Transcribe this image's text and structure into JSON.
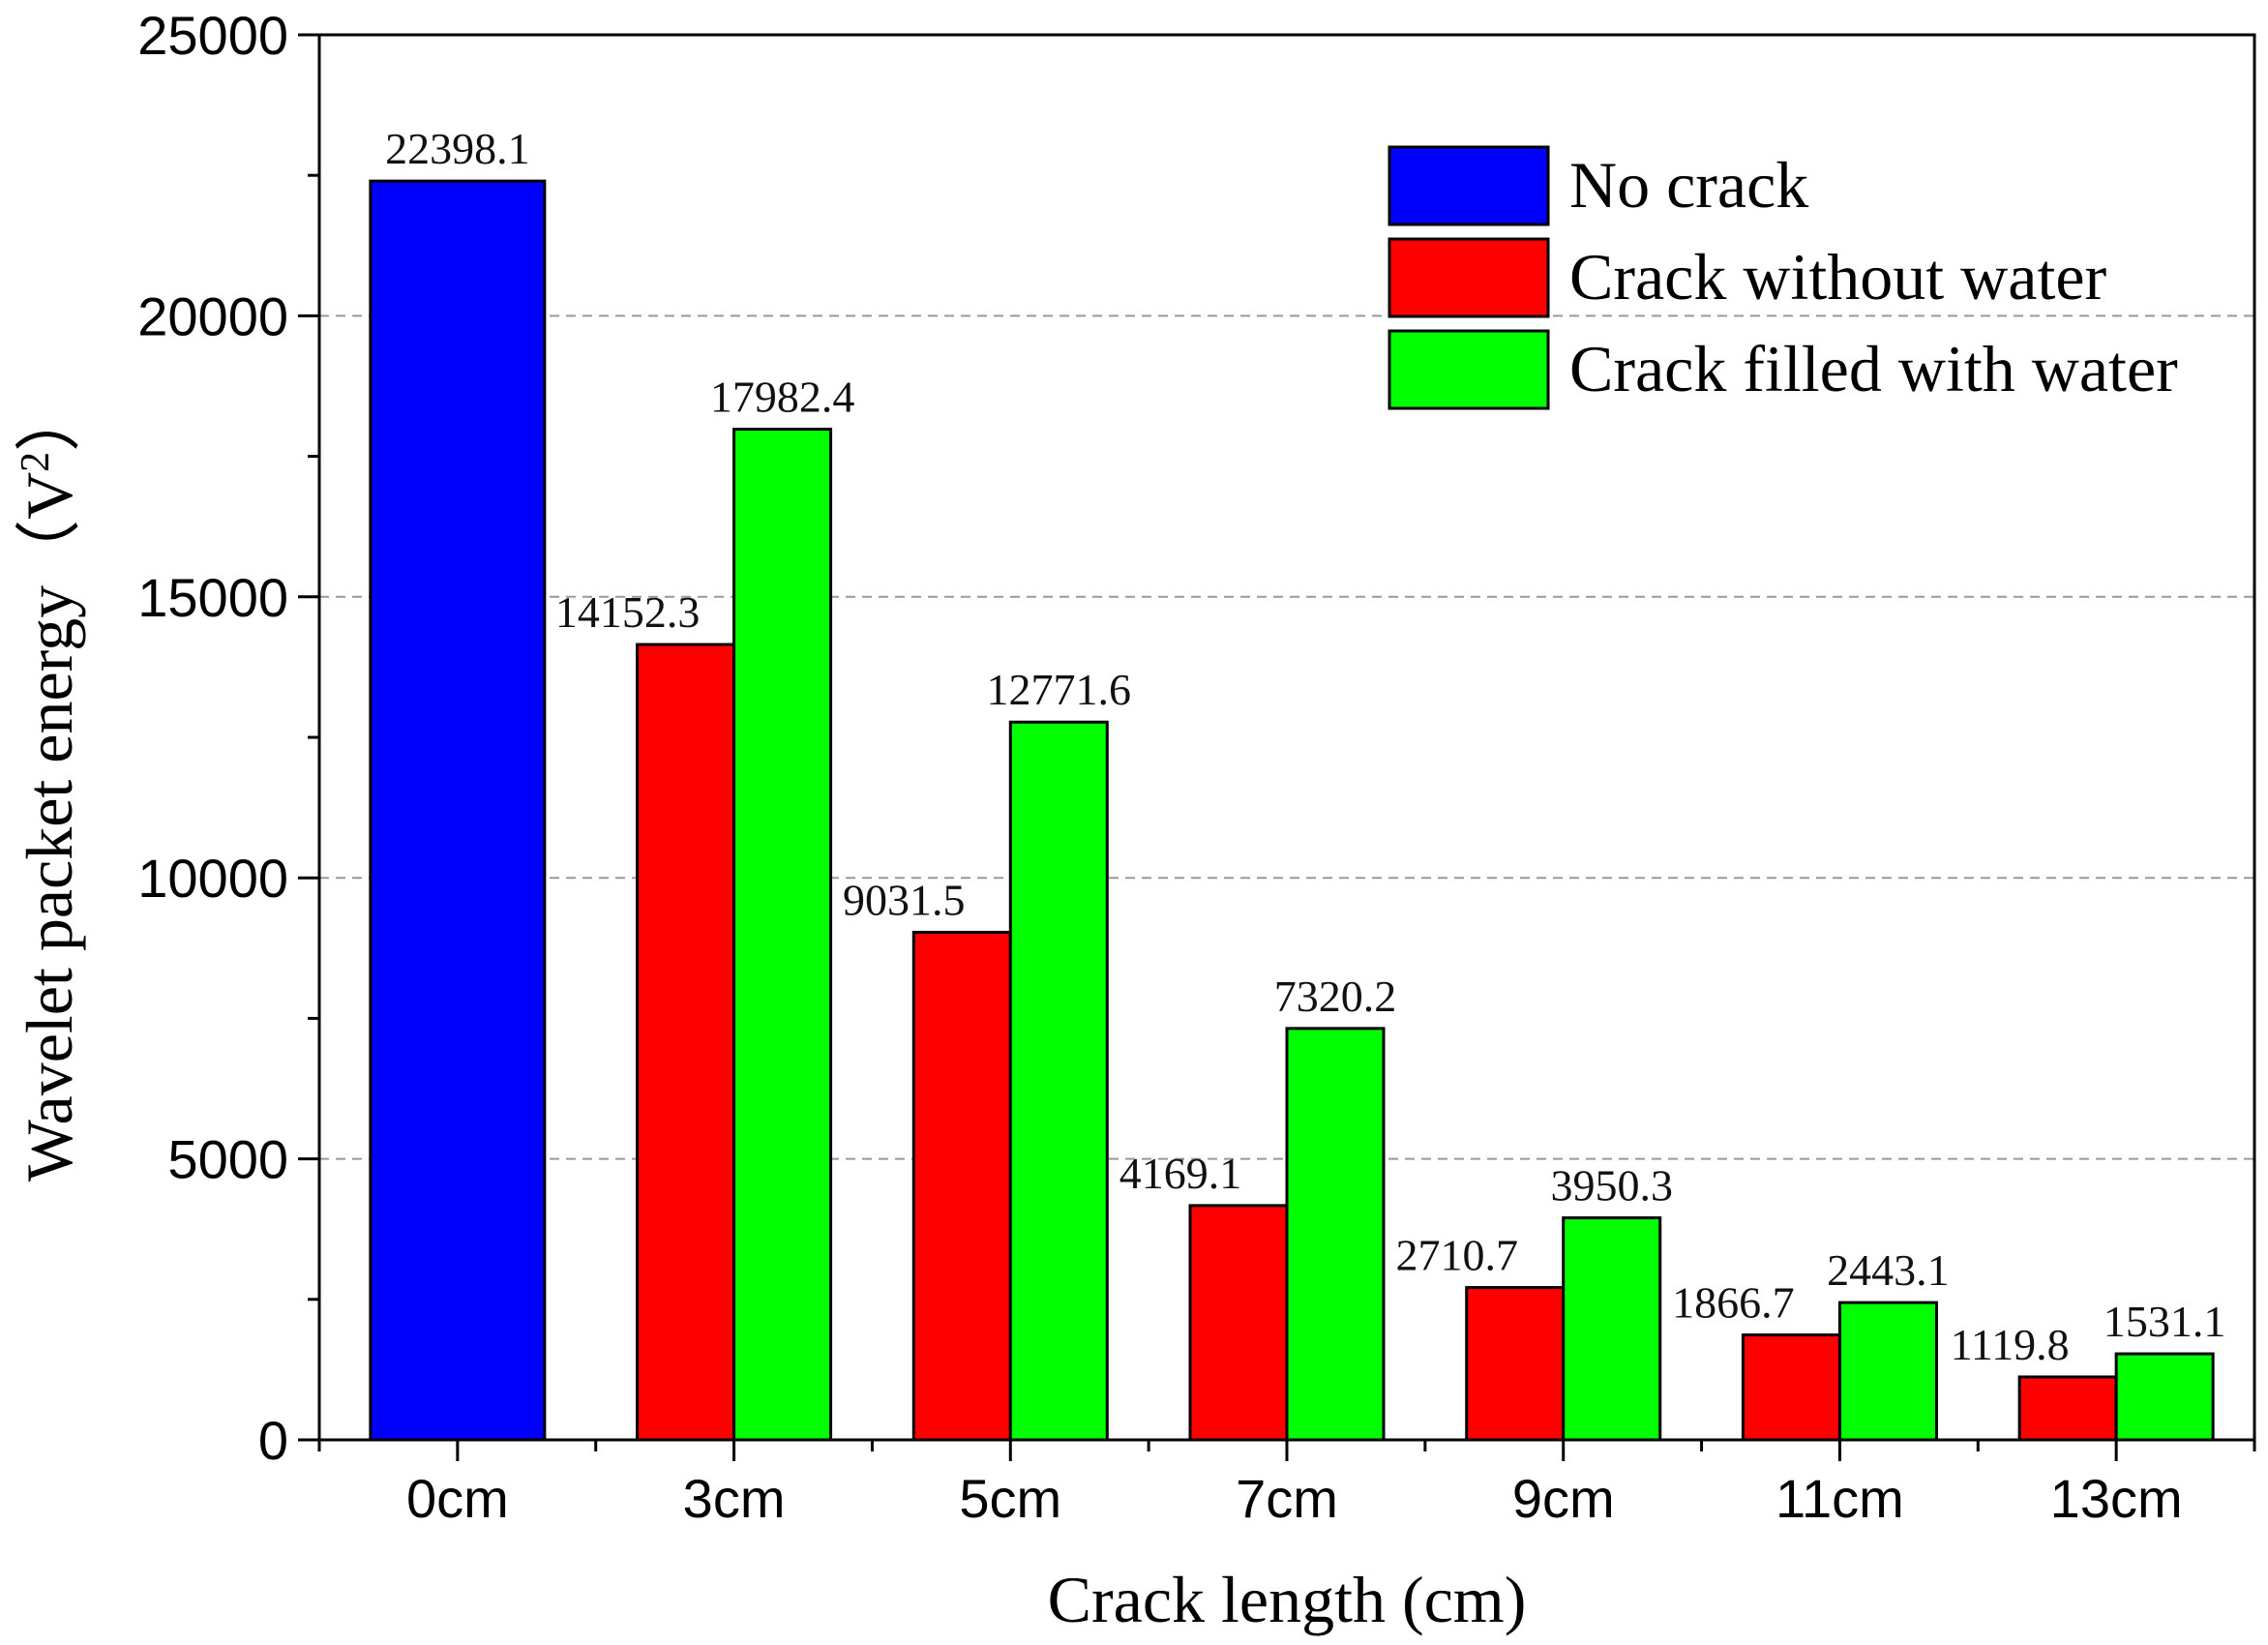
{
  "chart_data": {
    "type": "bar",
    "title": "",
    "xlabel": "Crack length (cm)",
    "ylabel": "Wavelet packet energy（V²）",
    "ylabel_main": "Wavelet packet energy（V",
    "ylabel_sup": "2",
    "ylabel_end": "）",
    "ylim": [
      0,
      25000
    ],
    "yticks": [
      0,
      5000,
      10000,
      15000,
      20000,
      25000
    ],
    "grid": "horizontal-dashed",
    "legend_position": "top-right",
    "categories": [
      "0cm",
      "3cm",
      "5cm",
      "7cm",
      "9cm",
      "11cm",
      "13cm"
    ],
    "series": [
      {
        "name": "No crack",
        "color": "#0000ff",
        "values": [
          22398.1,
          null,
          null,
          null,
          null,
          null,
          null
        ]
      },
      {
        "name": "Crack without water",
        "color": "#ff0000",
        "values": [
          null,
          14152.3,
          9031.5,
          4169.1,
          2710.7,
          1866.7,
          1119.8
        ]
      },
      {
        "name": "Crack filled with water",
        "color": "#00ff00",
        "values": [
          null,
          17982.4,
          12771.6,
          7320.2,
          3950.3,
          2443.1,
          1531.1
        ]
      }
    ],
    "data_labels": [
      [
        "22398.1",
        null,
        null,
        null,
        null,
        null,
        null
      ],
      [
        null,
        "14152.3",
        "9031.5",
        "4169.1",
        "2710.7",
        "1866.7",
        "1119.8"
      ],
      [
        null,
        "17982.4",
        "12771.6",
        "7320.2",
        "3950.3",
        "2443.1",
        "1531.1"
      ]
    ]
  }
}
